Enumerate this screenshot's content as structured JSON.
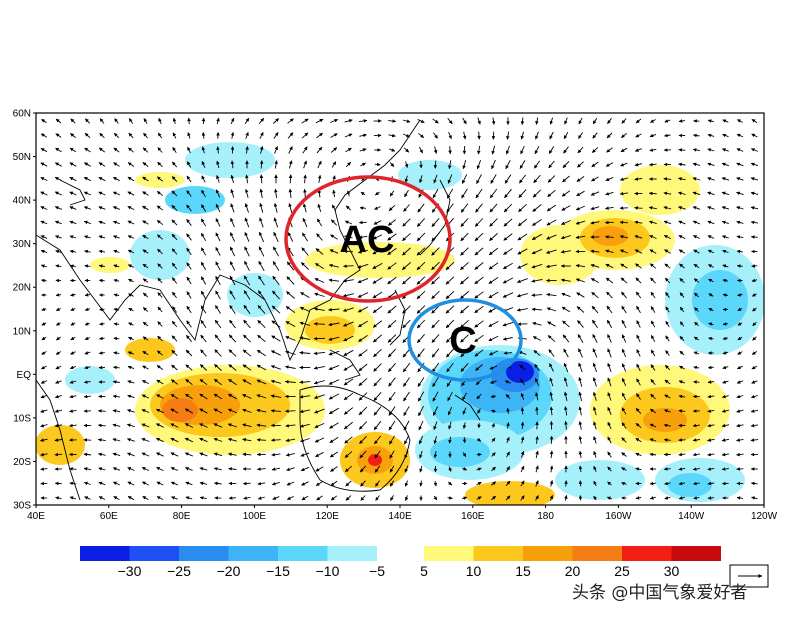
{
  "map": {
    "lat_labels": [
      "60N",
      "50N",
      "40N",
      "30N",
      "20N",
      "10N",
      "EQ",
      "10S",
      "20S",
      "30S"
    ],
    "lon_labels": [
      "40E",
      "60E",
      "80E",
      "100E",
      "120E",
      "140E",
      "160E",
      "180",
      "160W",
      "140W",
      "120W"
    ],
    "annotations": [
      {
        "label": "AC",
        "ellipse_color": "#e0242c"
      },
      {
        "label": "C",
        "ellipse_color": "#1f8fe0"
      }
    ],
    "field_shading": "positive-warm / negative-cool anomaly shading",
    "vectors": "wind anomaly arrows"
  },
  "colorbar": {
    "negative": {
      "colors": [
        "#0a1ee6",
        "#1e50f5",
        "#2a8cf0",
        "#3cb4f5",
        "#5ad7fa",
        "#a6f0fc"
      ],
      "labels": [
        "−30",
        "−25",
        "−20",
        "−15",
        "−10",
        "−5"
      ]
    },
    "positive": {
      "colors": [
        "#fff87a",
        "#fcc81e",
        "#f8a00c",
        "#f67c14",
        "#f41e14",
        "#c80a10"
      ],
      "labels": [
        "5",
        "10",
        "15",
        "20",
        "25",
        "30"
      ]
    }
  },
  "reference_vector_icon": "arrow-right-icon",
  "watermark": "头条 @中国气象爱好者"
}
